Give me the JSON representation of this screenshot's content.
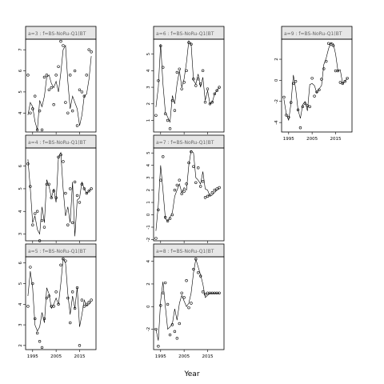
{
  "chart_data": {
    "type": "line",
    "xlabel": "Year",
    "x_ticks": [
      1995,
      2005,
      2015
    ],
    "panels": [
      {
        "strip": "a=3 : f=BS-NoRu-Q1(BT",
        "ylim": [
          3.1,
          7.5
        ],
        "y_ticks": [
          4,
          5,
          6,
          7
        ],
        "x": [
          1993,
          1994,
          1995,
          1996,
          1997,
          1998,
          1999,
          2000,
          2001,
          2002,
          2003,
          2004,
          2005,
          2006,
          2007,
          2008,
          2009,
          2010,
          2011,
          2012,
          2013,
          2014,
          2015,
          2016,
          2017,
          2018,
          2019,
          2020
        ],
        "fitted": [
          3.9,
          4.5,
          4.3,
          3.6,
          3.2,
          4.6,
          4.3,
          4.8,
          5.7,
          5.8,
          5.4,
          5.2,
          5.5,
          5.0,
          5.9,
          7.0,
          7.2,
          5.5,
          4.2,
          4.8,
          4.5,
          4.2,
          3.4,
          3.9,
          4.8,
          4.9,
          5.6,
          6.7
        ],
        "observed": [
          5.8,
          4.0,
          4.2,
          4.8,
          3.2,
          4.1,
          3.2,
          5.7,
          5.8,
          5.1,
          5.2,
          4.4,
          5.8,
          6.2,
          7.4,
          7.2,
          4.5,
          4.0,
          5.8,
          4.1,
          6.0,
          3.4,
          5.1,
          5.0,
          4.8,
          5.8,
          7.0,
          6.9
        ]
      },
      {
        "strip": "a=6 : f=BS-NoRu-Q1(BT",
        "ylim": [
          0.3,
          5.9
        ],
        "y_ticks": [
          1,
          2,
          3,
          4,
          5
        ],
        "x": [
          1993,
          1994,
          1995,
          1996,
          1997,
          1998,
          1999,
          2000,
          2001,
          2002,
          2003,
          2004,
          2005,
          2006,
          2007,
          2008,
          2009,
          2010,
          2011,
          2012,
          2013,
          2014,
          2015,
          2016,
          2017,
          2018,
          2019,
          2020
        ],
        "fitted": [
          1.8,
          3.0,
          5.6,
          3.2,
          1.5,
          1.2,
          0.9,
          2.5,
          2.0,
          3.2,
          4.0,
          3.0,
          3.5,
          4.5,
          5.8,
          5.6,
          3.4,
          3.2,
          3.8,
          3.0,
          3.6,
          2.2,
          2.8,
          2.0,
          2.1,
          2.6,
          2.8,
          3.0
        ],
        "observed": [
          1.3,
          3.4,
          5.5,
          4.2,
          1.4,
          1.0,
          0.5,
          2.2,
          1.6,
          3.9,
          4.1,
          2.9,
          3.3,
          4.0,
          5.7,
          5.6,
          3.5,
          3.1,
          3.5,
          3.2,
          4.0,
          2.1,
          2.9,
          2.0,
          2.1,
          2.6,
          2.8,
          3.0
        ]
      },
      {
        "strip": "a=9 : f=BS-NoRu-Q1(BT",
        "ylim": [
          -4.9,
          3.9
        ],
        "y_ticks": [
          -4,
          -2,
          0,
          2
        ],
        "x": [
          1993,
          1994,
          1995,
          1996,
          1997,
          1998,
          1999,
          2000,
          2001,
          2002,
          2003,
          2004,
          2005,
          2006,
          2007,
          2008,
          2009,
          2010,
          2011,
          2012,
          2013,
          2014,
          2015,
          2016,
          2017,
          2018,
          2019,
          2020
        ],
        "fitted": [
          -1.8,
          -3.2,
          -3.8,
          -2.2,
          0.5,
          -0.8,
          -2.8,
          -3.6,
          -2.3,
          -2.0,
          -2.9,
          -0.4,
          -0.3,
          -0.5,
          -1.2,
          -0.8,
          -0.5,
          1.5,
          2.1,
          3.0,
          3.6,
          3.5,
          2.5,
          0.9,
          1.0,
          -0.3,
          -0.1,
          0.2
        ],
        "observed": [
          -1.6,
          -3.3,
          -3.5,
          -2.1,
          -0.3,
          -0.1,
          -2.8,
          -4.5,
          -2.5,
          -2.2,
          -2.4,
          -2.5,
          0.2,
          -1.5,
          -1.1,
          -0.9,
          0.1,
          1.1,
          1.8,
          3.5,
          3.4,
          3.3,
          0.9,
          0.9,
          -0.2,
          -0.3,
          -0.1,
          0.2
        ]
      },
      {
        "strip": "a=4 : f=BS-NoRu-Q1(BT",
        "ylim": [
          2.7,
          6.8
        ],
        "y_ticks": [
          3,
          4,
          5,
          6
        ],
        "x": [
          1993,
          1994,
          1995,
          1996,
          1997,
          1998,
          1999,
          2000,
          2001,
          2002,
          2003,
          2004,
          2005,
          2006,
          2007,
          2008,
          2009,
          2010,
          2011,
          2012,
          2013,
          2014,
          2015,
          2016,
          2017,
          2018,
          2019,
          2020
        ],
        "fitted": [
          6.3,
          5.0,
          3.5,
          3.8,
          3.2,
          3.0,
          4.2,
          3.5,
          5.4,
          5.1,
          4.6,
          5.0,
          4.4,
          6.4,
          6.6,
          5.0,
          3.8,
          4.2,
          3.5,
          5.3,
          2.9,
          4.5,
          4.6,
          5.3,
          5.0,
          4.8,
          4.9,
          5.0
        ],
        "observed": [
          6.1,
          5.1,
          3.4,
          3.9,
          4.0,
          2.7,
          3.6,
          3.3,
          5.2,
          5.2,
          4.6,
          4.9,
          4.6,
          6.4,
          6.5,
          6.2,
          4.8,
          3.4,
          5.0,
          3.5,
          5.3,
          4.7,
          4.4,
          5.2,
          5.0,
          4.8,
          4.9,
          5.0
        ]
      },
      {
        "strip": "a=7 : f=BS-NoRu-Q1(BT",
        "ylim": [
          -2.1,
          5.4
        ],
        "y_ticks": [
          -2,
          -1,
          0,
          1,
          2,
          3,
          4,
          5
        ],
        "x": [
          1993,
          1994,
          1995,
          1996,
          1997,
          1998,
          1999,
          2000,
          2001,
          2002,
          2003,
          2004,
          2005,
          2006,
          2007,
          2008,
          2009,
          2010,
          2011,
          2012,
          2013,
          2014,
          2015,
          2016,
          2017,
          2018,
          2019,
          2020
        ],
        "fitted": [
          -1.3,
          0.8,
          4.0,
          2.0,
          -0.3,
          -0.5,
          -0.2,
          0.2,
          1.5,
          2.0,
          2.5,
          1.8,
          2.2,
          2.0,
          4.0,
          5.2,
          5.0,
          3.0,
          2.8,
          2.5,
          3.5,
          2.1,
          2.0,
          1.5,
          1.6,
          1.8,
          2.0,
          2.1
        ],
        "observed": [
          -1.9,
          0.4,
          2.8,
          4.7,
          -0.2,
          -0.5,
          -0.3,
          0.0,
          2.0,
          2.4,
          2.8,
          1.7,
          1.9,
          2.5,
          4.2,
          5.1,
          3.9,
          2.6,
          3.8,
          2.3,
          2.7,
          1.4,
          1.5,
          1.6,
          1.8,
          2.0,
          2.1,
          2.2
        ]
      },
      {
        "strip": "a=5 : f=BS-NoRu-Q1(BT",
        "ylim": [
          1.8,
          6.3
        ],
        "y_ticks": [
          2,
          3,
          4,
          5,
          6
        ],
        "x": [
          1993,
          1994,
          1995,
          1996,
          1997,
          1998,
          1999,
          2000,
          2001,
          2002,
          2003,
          2004,
          2005,
          2006,
          2007,
          2008,
          2009,
          2010,
          2011,
          2012,
          2013,
          2014,
          2015,
          2016,
          2017,
          2018,
          2019,
          2020
        ],
        "fitted": [
          4.4,
          5.6,
          4.8,
          3.0,
          2.7,
          2.9,
          3.6,
          3.1,
          4.8,
          4.5,
          3.8,
          4.0,
          4.3,
          4.0,
          5.0,
          6.2,
          6.0,
          4.5,
          3.5,
          4.4,
          3.8,
          4.8,
          2.9,
          3.5,
          4.2,
          3.9,
          4.0,
          4.1
        ],
        "observed": [
          3.9,
          5.8,
          5.0,
          3.3,
          2.6,
          2.2,
          1.9,
          3.3,
          4.3,
          4.4,
          3.9,
          3.9,
          4.6,
          4.0,
          5.9,
          6.2,
          6.1,
          4.3,
          3.1,
          4.6,
          3.8,
          4.8,
          2.0,
          4.2,
          3.9,
          4.0,
          4.1,
          4.2
        ]
      },
      {
        "strip": "a=8 : f=BS-NoRu-Q1(BT",
        "ylim": [
          -3.8,
          4.4
        ],
        "y_ticks": [
          -2,
          0,
          2,
          4
        ],
        "x": [
          1993,
          1994,
          1995,
          1996,
          1997,
          1998,
          1999,
          2000,
          2001,
          2002,
          2003,
          2004,
          2005,
          2006,
          2007,
          2008,
          2009,
          2010,
          2011,
          2012,
          2013,
          2014,
          2015,
          2016,
          2017,
          2018,
          2019,
          2020
        ],
        "fitted": [
          -2.0,
          -3.0,
          0.5,
          2.2,
          0.0,
          -2.0,
          -1.8,
          -1.5,
          -0.2,
          -1.2,
          0.3,
          1.0,
          0.5,
          0.0,
          0.3,
          1.2,
          3.0,
          4.2,
          3.5,
          2.8,
          2.0,
          0.8,
          1.0,
          1.2,
          1.2,
          1.2,
          1.2,
          1.2
        ],
        "observed": [
          -2.0,
          -3.5,
          0.1,
          1.2,
          2.1,
          0.2,
          -2.5,
          -1.6,
          -2.2,
          -2.8,
          -1.5,
          1.2,
          0.8,
          2.3,
          -0.1,
          0.3,
          3.3,
          4.2,
          3.0,
          2.7,
          1.3,
          1.1,
          1.2,
          1.2,
          1.2,
          1.2,
          1.2,
          1.2
        ]
      }
    ]
  }
}
